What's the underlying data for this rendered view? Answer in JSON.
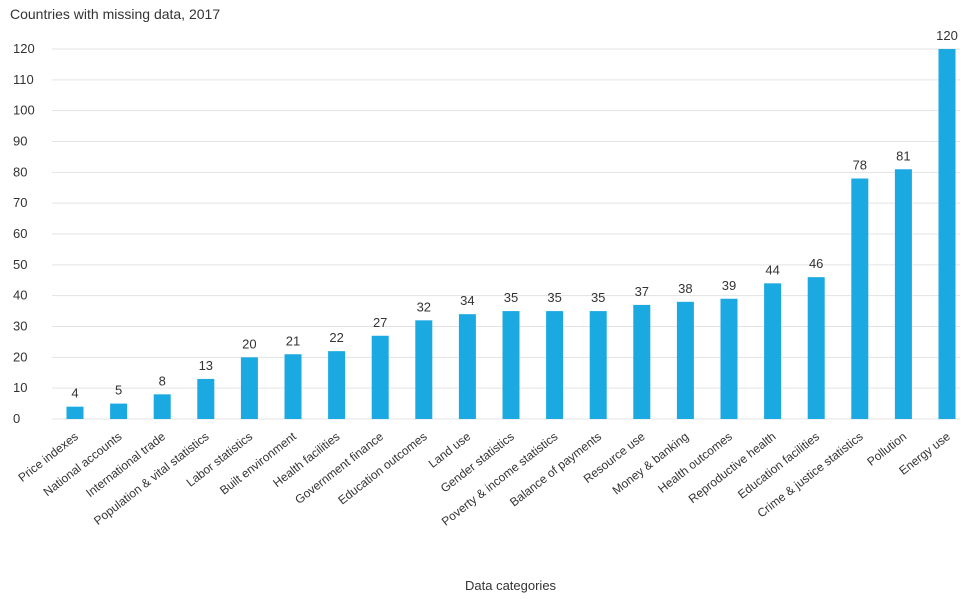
{
  "chart_data": {
    "type": "bar",
    "title": "Countries with missing data, 2017",
    "xlabel": "Data categories",
    "ylabel": "",
    "ylim": [
      0,
      120
    ],
    "yticks": [
      0,
      10,
      20,
      30,
      40,
      50,
      60,
      70,
      80,
      90,
      100,
      110,
      120
    ],
    "grid": true,
    "bar_color": "#1ba9e1",
    "categories": [
      "Price indexes",
      "National accounts",
      "International trade",
      "Population & vital statistics",
      "Labor statistics",
      "Built environment",
      "Health facilities",
      "Government finance",
      "Education outcomes",
      "Land use",
      "Gender statistics",
      "Poverty & income statistics",
      "Balance of payments",
      "Resource use",
      "Money & banking",
      "Health outcomes",
      "Reproductive health",
      "Education facilities",
      "Crime & justice statistics",
      "Pollution",
      "Energy use"
    ],
    "values": [
      4,
      5,
      8,
      13,
      20,
      21,
      22,
      27,
      32,
      34,
      35,
      35,
      35,
      37,
      38,
      39,
      44,
      46,
      78,
      81,
      120
    ]
  }
}
